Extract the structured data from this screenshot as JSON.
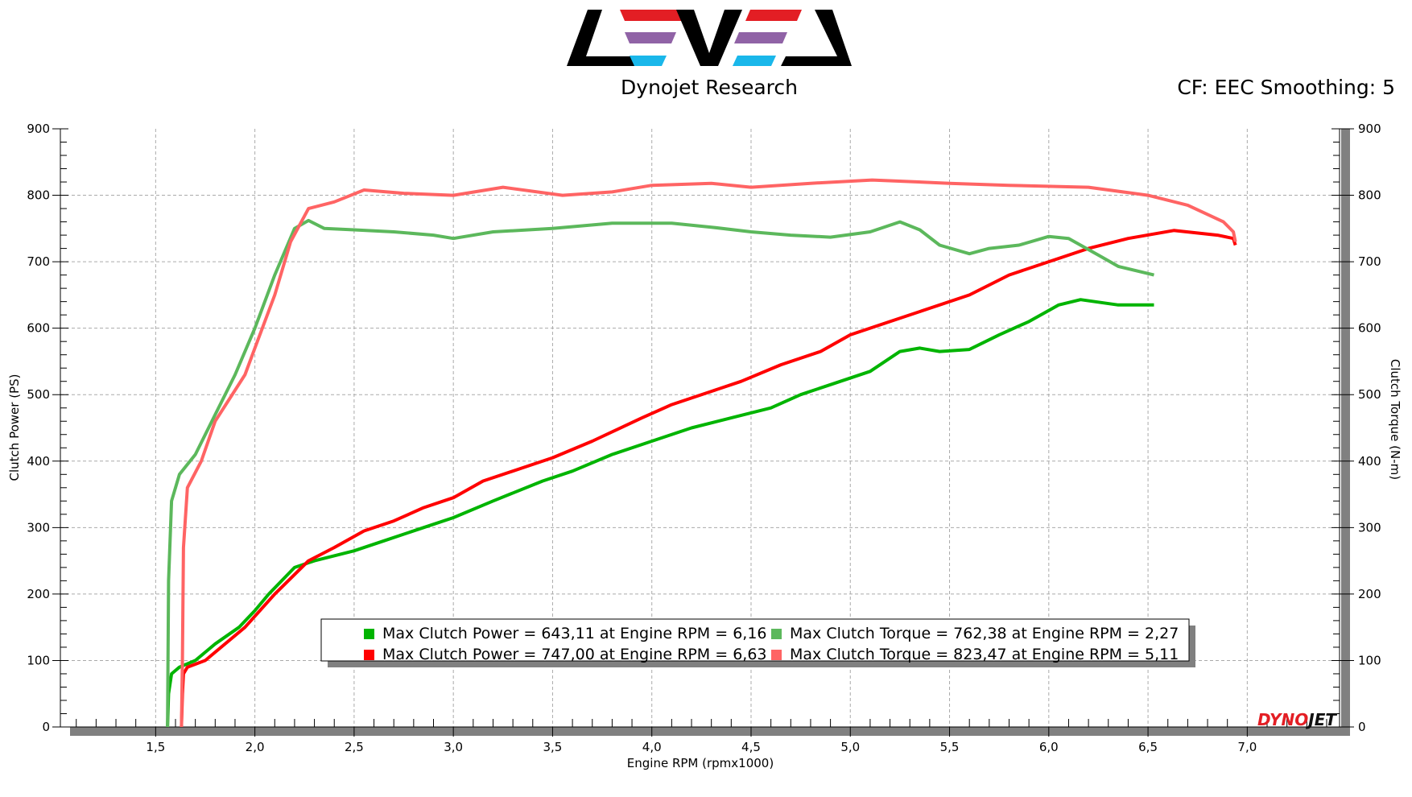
{
  "header": {
    "logo_text": "LEVEL",
    "title": "Dynojet Research",
    "correction": "CF: EEC Smoothing: 5",
    "watermark": "DYNOJET"
  },
  "colors": {
    "power_run1": "#00b400",
    "power_run2": "#ff0000",
    "torque_run1": "#5cb85c",
    "torque_run2": "#ff6464",
    "logo_red": "#e31e24",
    "logo_purple": "#9063a6",
    "logo_blue": "#1ab7ea"
  },
  "chart_data": {
    "type": "line",
    "xlabel": "Engine RPM (rpmx1000)",
    "ylabel": "Clutch Power (PS)",
    "y2label": "Clutch Torque (N-m)",
    "xlim": [
      1.02,
      7.465
    ],
    "ylim": [
      0,
      900
    ],
    "y2lim": [
      0,
      900
    ],
    "grid": true,
    "x_ticks": [
      "1,5",
      "2,0",
      "2,5",
      "3,0",
      "3,5",
      "4,0",
      "4,5",
      "5,0",
      "5,5",
      "6,0",
      "6,5",
      "7,0"
    ],
    "x_tick_values": [
      1.5,
      2.0,
      2.5,
      3.0,
      3.5,
      4.0,
      4.5,
      5.0,
      5.5,
      6.0,
      6.5,
      7.0
    ],
    "y_ticks": [
      "0",
      "100",
      "200",
      "300",
      "400",
      "500",
      "600",
      "700",
      "800",
      "900"
    ],
    "y_tick_values": [
      0,
      100,
      200,
      300,
      400,
      500,
      600,
      700,
      800,
      900
    ],
    "legend_position": "bottom-center",
    "legend": [
      {
        "label": "Max Clutch Power = 643,11 at Engine RPM = 6,16",
        "series": 0
      },
      {
        "label": "Max Clutch Torque = 762,38 at Engine RPM = 2,27",
        "series": 2
      },
      {
        "label": "Max Clutch Power = 747,00 at Engine RPM = 6,63",
        "series": 1
      },
      {
        "label": "Max Clutch Torque = 823,47 at Engine RPM = 5,11",
        "series": 3
      }
    ],
    "series": [
      {
        "name": "Clutch Power run 1",
        "axis": "left",
        "color_key": "power_run1",
        "x": [
          1.56,
          1.565,
          1.58,
          1.62,
          1.7,
          1.8,
          1.92,
          2.0,
          2.07,
          2.2,
          2.3,
          2.5,
          2.65,
          2.85,
          3.0,
          3.2,
          3.45,
          3.6,
          3.8,
          4.0,
          4.2,
          4.4,
          4.6,
          4.75,
          4.9,
          5.1,
          5.25,
          5.35,
          5.45,
          5.6,
          5.75,
          5.9,
          6.05,
          6.16,
          6.35,
          6.53
        ],
        "y": [
          0,
          50,
          80,
          90,
          100,
          125,
          150,
          175,
          200,
          240,
          250,
          265,
          280,
          300,
          315,
          340,
          370,
          385,
          410,
          430,
          450,
          465,
          480,
          500,
          515,
          535,
          565,
          570,
          565,
          568,
          590,
          610,
          635,
          643,
          635,
          635
        ]
      },
      {
        "name": "Clutch Power run 2",
        "axis": "left",
        "color_key": "power_run2",
        "x": [
          1.63,
          1.635,
          1.64,
          1.66,
          1.75,
          1.95,
          2.1,
          2.27,
          2.4,
          2.55,
          2.7,
          2.85,
          3.0,
          3.15,
          3.35,
          3.5,
          3.7,
          3.95,
          4.1,
          4.3,
          4.45,
          4.65,
          4.85,
          5.0,
          5.2,
          5.4,
          5.6,
          5.8,
          6.0,
          6.2,
          6.4,
          6.63,
          6.85,
          6.93,
          6.94
        ],
        "y": [
          0,
          50,
          80,
          90,
          100,
          150,
          200,
          250,
          270,
          295,
          310,
          330,
          345,
          370,
          390,
          405,
          430,
          465,
          485,
          505,
          520,
          545,
          565,
          590,
          610,
          630,
          650,
          680,
          700,
          720,
          735,
          747,
          740,
          735,
          725
        ]
      },
      {
        "name": "Clutch Torque run 1",
        "axis": "right",
        "color_key": "torque_run1",
        "x": [
          1.56,
          1.565,
          1.58,
          1.62,
          1.7,
          1.8,
          1.9,
          2.0,
          2.1,
          2.2,
          2.27,
          2.35,
          2.5,
          2.7,
          2.9,
          3.0,
          3.2,
          3.5,
          3.8,
          4.1,
          4.3,
          4.5,
          4.7,
          4.9,
          5.1,
          5.25,
          5.35,
          5.45,
          5.6,
          5.7,
          5.85,
          6.0,
          6.1,
          6.25,
          6.35,
          6.53
        ],
        "y": [
          0,
          220,
          340,
          380,
          410,
          470,
          530,
          600,
          680,
          750,
          762,
          750,
          748,
          745,
          740,
          735,
          745,
          750,
          758,
          758,
          752,
          745,
          740,
          737,
          745,
          760,
          748,
          725,
          712,
          720,
          725,
          738,
          735,
          710,
          693,
          680
        ]
      },
      {
        "name": "Clutch Torque run 2",
        "axis": "right",
        "color_key": "torque_run2",
        "x": [
          1.63,
          1.635,
          1.64,
          1.66,
          1.73,
          1.8,
          1.95,
          2.0,
          2.1,
          2.18,
          2.27,
          2.4,
          2.55,
          2.75,
          3.0,
          3.25,
          3.55,
          3.8,
          4.0,
          4.3,
          4.5,
          4.8,
          5.11,
          5.5,
          5.8,
          6.2,
          6.5,
          6.7,
          6.88,
          6.93,
          6.94
        ],
        "y": [
          0,
          100,
          270,
          360,
          400,
          460,
          530,
          570,
          650,
          730,
          780,
          790,
          808,
          803,
          800,
          812,
          800,
          805,
          815,
          818,
          812,
          818,
          823,
          818,
          815,
          812,
          800,
          785,
          760,
          745,
          730
        ]
      }
    ]
  }
}
